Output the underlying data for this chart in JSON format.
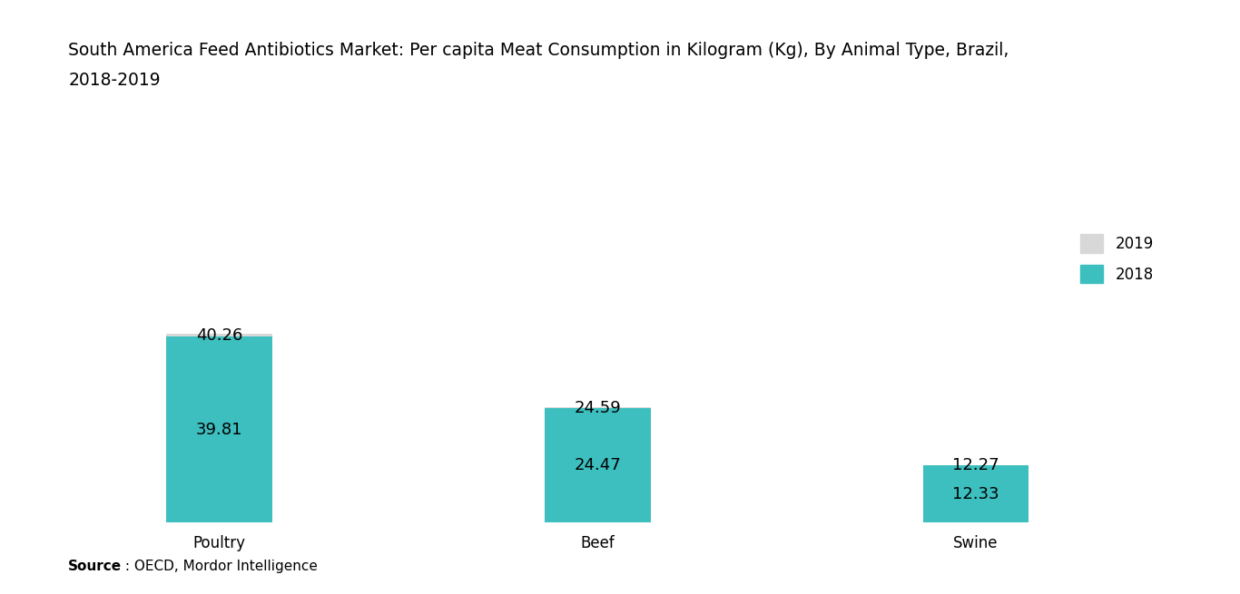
{
  "title_line1": "South America Feed Antibiotics Market: Per capita Meat Consumption in Kilogram (Kg), By Animal Type, Brazil,",
  "title_line2": "2018-2019",
  "categories": [
    "Poultry",
    "Beef",
    "Swine"
  ],
  "values_2018": [
    39.81,
    24.47,
    12.33
  ],
  "values_2019": [
    40.26,
    24.59,
    12.27
  ],
  "color_2018": "#3DBFBF",
  "color_2019": "#D8D8D8",
  "background_color": "#FFFFFF",
  "title_fontsize": 13.5,
  "label_fontsize": 13,
  "tick_fontsize": 12,
  "legend_fontsize": 12,
  "source_bold": "Source",
  "source_rest": " : OECD, Mordor Intelligence",
  "bar_width": 0.28,
  "ylim": [
    0,
    90
  ],
  "x_positions": [
    0.15,
    0.45,
    0.75
  ]
}
